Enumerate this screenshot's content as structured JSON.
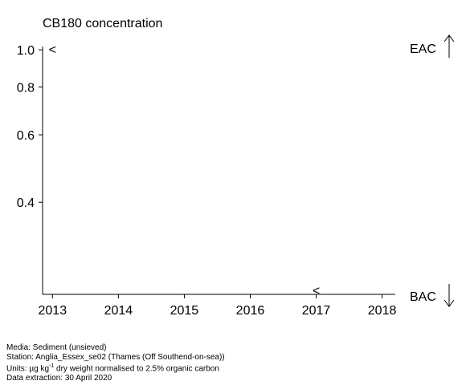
{
  "chart_data": {
    "type": "scatter",
    "title": "CB180 concentration",
    "xlabel": "",
    "ylabel": "",
    "x_ticks": [
      "2013",
      "2014",
      "2015",
      "2016",
      "2017",
      "2018"
    ],
    "xlim": [
      2012.85,
      2018.2
    ],
    "y_ticks": [
      "0.4",
      "0.6",
      "0.8",
      "1.0"
    ],
    "y_scale": "log",
    "ylim": [
      0.23,
      1.02
    ],
    "points": [
      {
        "x": 2013,
        "y": 1.0,
        "marker": "<"
      },
      {
        "x": 2017,
        "y": 0.235,
        "marker": "<"
      }
    ],
    "thresholds": [
      {
        "label": "EAC",
        "arrow": "up",
        "position": "top-right"
      },
      {
        "label": "BAC",
        "arrow": "down",
        "position": "bottom-right"
      }
    ],
    "grid": false
  },
  "footer": {
    "media": "Media: Sediment (unsieved)",
    "station": "Station: Anglia_Essex_se02 (Thames (Off Southend-on-sea))",
    "units_prefix": "Units:  µg kg",
    "units_exponent": "-1",
    "units_suffix": " dry weight normalised to 2.5% organic carbon",
    "extraction": "Data extraction: 30 April 2020"
  }
}
